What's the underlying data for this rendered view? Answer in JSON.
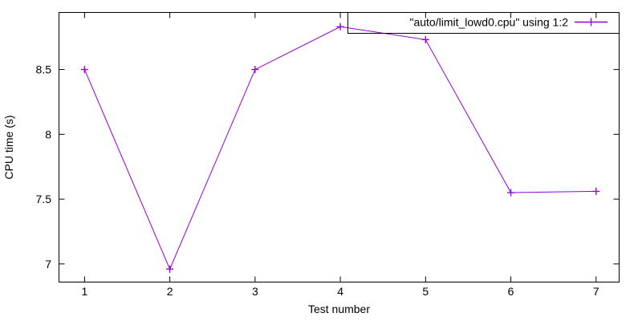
{
  "chart_data": {
    "type": "line",
    "title": "",
    "xlabel": "Test number",
    "ylabel": "CPU time (s)",
    "series": [
      {
        "name": "\"auto/limit_lowd0.cpu\" using 1:2",
        "x": [
          1,
          2,
          3,
          4,
          5,
          6,
          7
        ],
        "y": [
          8.5,
          6.96,
          8.5,
          8.83,
          8.73,
          7.55,
          7.56
        ],
        "color": "#9400d3",
        "marker": "plus"
      }
    ],
    "xticks": [
      1,
      2,
      3,
      4,
      5,
      6,
      7
    ],
    "yticks": [
      7,
      7.5,
      8,
      8.5
    ],
    "xlim": [
      0.7,
      7.27
    ],
    "ylim": [
      6.86,
      8.94
    ],
    "grid": false,
    "legend_position": "top-right",
    "legend_box": true,
    "colors": {
      "axis": "#000000",
      "text": "#000000",
      "background": "#ffffff"
    }
  }
}
